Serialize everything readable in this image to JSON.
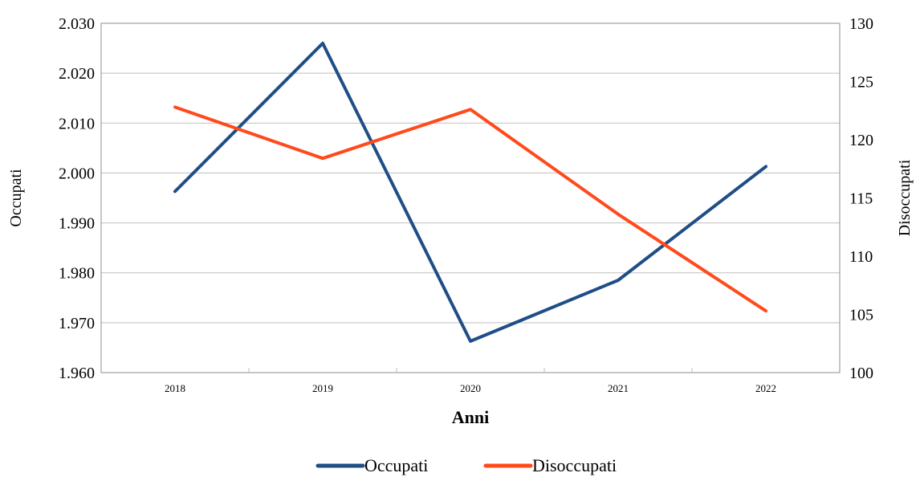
{
  "chart_data": {
    "type": "line",
    "categories": [
      "2018",
      "2019",
      "2020",
      "2021",
      "2022"
    ],
    "series": [
      {
        "name": "Occupati",
        "axis": "left",
        "color": "#1F4E86",
        "values": [
          1996.3,
          2026.0,
          1966.3,
          1978.5,
          2001.3
        ]
      },
      {
        "name": "Disoccupati",
        "axis": "right",
        "color": "#FF4A1C",
        "values": [
          122.8,
          118.4,
          122.6,
          113.6,
          105.3
        ]
      }
    ],
    "xlabel": "Anni",
    "ylabel_left": "Occupati",
    "ylabel_right": "Disoccupati",
    "ylim_left": [
      1960,
      2030
    ],
    "ylim_right": [
      100,
      130
    ],
    "yticks_left": [
      "1.960",
      "1.970",
      "1.980",
      "1.990",
      "2.000",
      "2.010",
      "2.020",
      "2.030"
    ],
    "yticks_right": [
      "100",
      "105",
      "110",
      "115",
      "120",
      "125",
      "130"
    ],
    "grid": true,
    "legend_position": "bottom"
  }
}
